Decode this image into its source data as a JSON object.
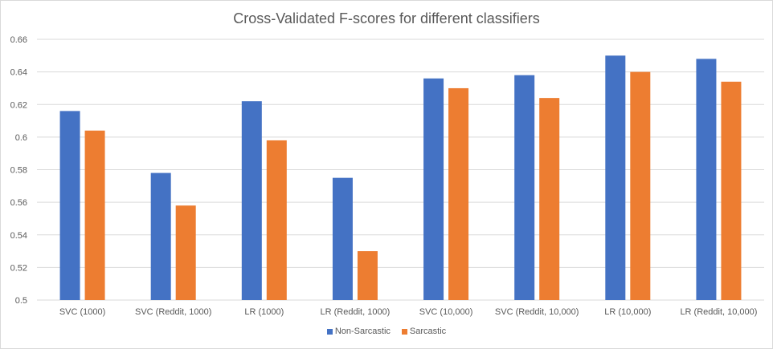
{
  "chart_data": {
    "type": "bar",
    "title": "Cross-Validated F-scores for different classifiers",
    "xlabel": "",
    "ylabel": "",
    "categories": [
      "SVC (1000)",
      "SVC (Reddit, 1000)",
      "LR (1000)",
      "LR (Reddit, 1000)",
      "SVC (10,000)",
      "SVC (Reddit, 10,000)",
      "LR (10,000)",
      "LR (Reddit, 10,000)"
    ],
    "series": [
      {
        "name": "Non-Sarcastic",
        "color": "#4472c4",
        "values": [
          0.616,
          0.578,
          0.622,
          0.575,
          0.636,
          0.638,
          0.65,
          0.648
        ]
      },
      {
        "name": "Sarcastic",
        "color": "#ed7d31",
        "values": [
          0.604,
          0.558,
          0.598,
          0.53,
          0.63,
          0.624,
          0.64,
          0.634
        ]
      }
    ],
    "ylim": [
      0.5,
      0.66
    ],
    "yticks": [
      "0.5",
      "0.52",
      "0.54",
      "0.56",
      "0.58",
      "0.6",
      "0.62",
      "0.64",
      "0.66"
    ],
    "grid": true,
    "legend_position": "bottom"
  }
}
